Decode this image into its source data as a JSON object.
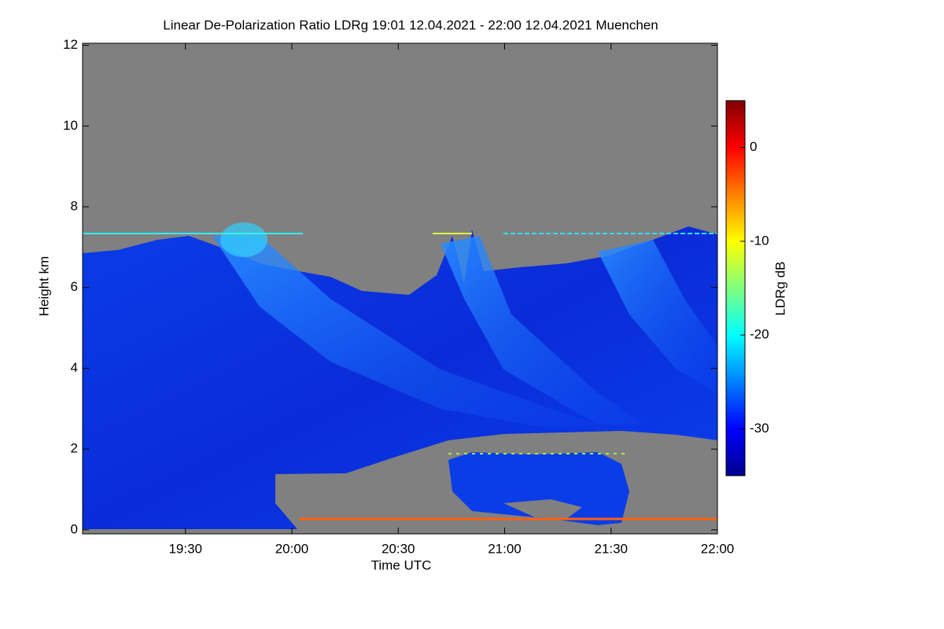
{
  "chart_data": {
    "type": "heatmap",
    "title": "Linear De-Polarization Ratio LDRg   19:01 12.04.2021 - 22:00 12.04.2021 Muenchen",
    "x_label": "Time UTC",
    "y_label": "Height km",
    "xlim": [
      19.0167,
      22.0
    ],
    "xticks": [
      {
        "value": 19.5,
        "label": "19:30"
      },
      {
        "value": 20.0,
        "label": "20:00"
      },
      {
        "value": 20.5,
        "label": "20:30"
      },
      {
        "value": 21.0,
        "label": "21:00"
      },
      {
        "value": 21.5,
        "label": "21:30"
      },
      {
        "value": 22.0,
        "label": "22:00"
      }
    ],
    "ylim": [
      -0.1,
      12.05
    ],
    "yticks": [
      0,
      2,
      4,
      6,
      8,
      10,
      12
    ],
    "colorbar_label": "LDRg dB",
    "clim": [
      -35,
      5
    ],
    "cticks": [
      0,
      -10,
      -20,
      -30
    ],
    "colormap": [
      "#00008f",
      "#0000ff",
      "#0080ff",
      "#00ffff",
      "#80ff80",
      "#ffff00",
      "#ff8000",
      "#ff0000",
      "#800000"
    ]
  }
}
